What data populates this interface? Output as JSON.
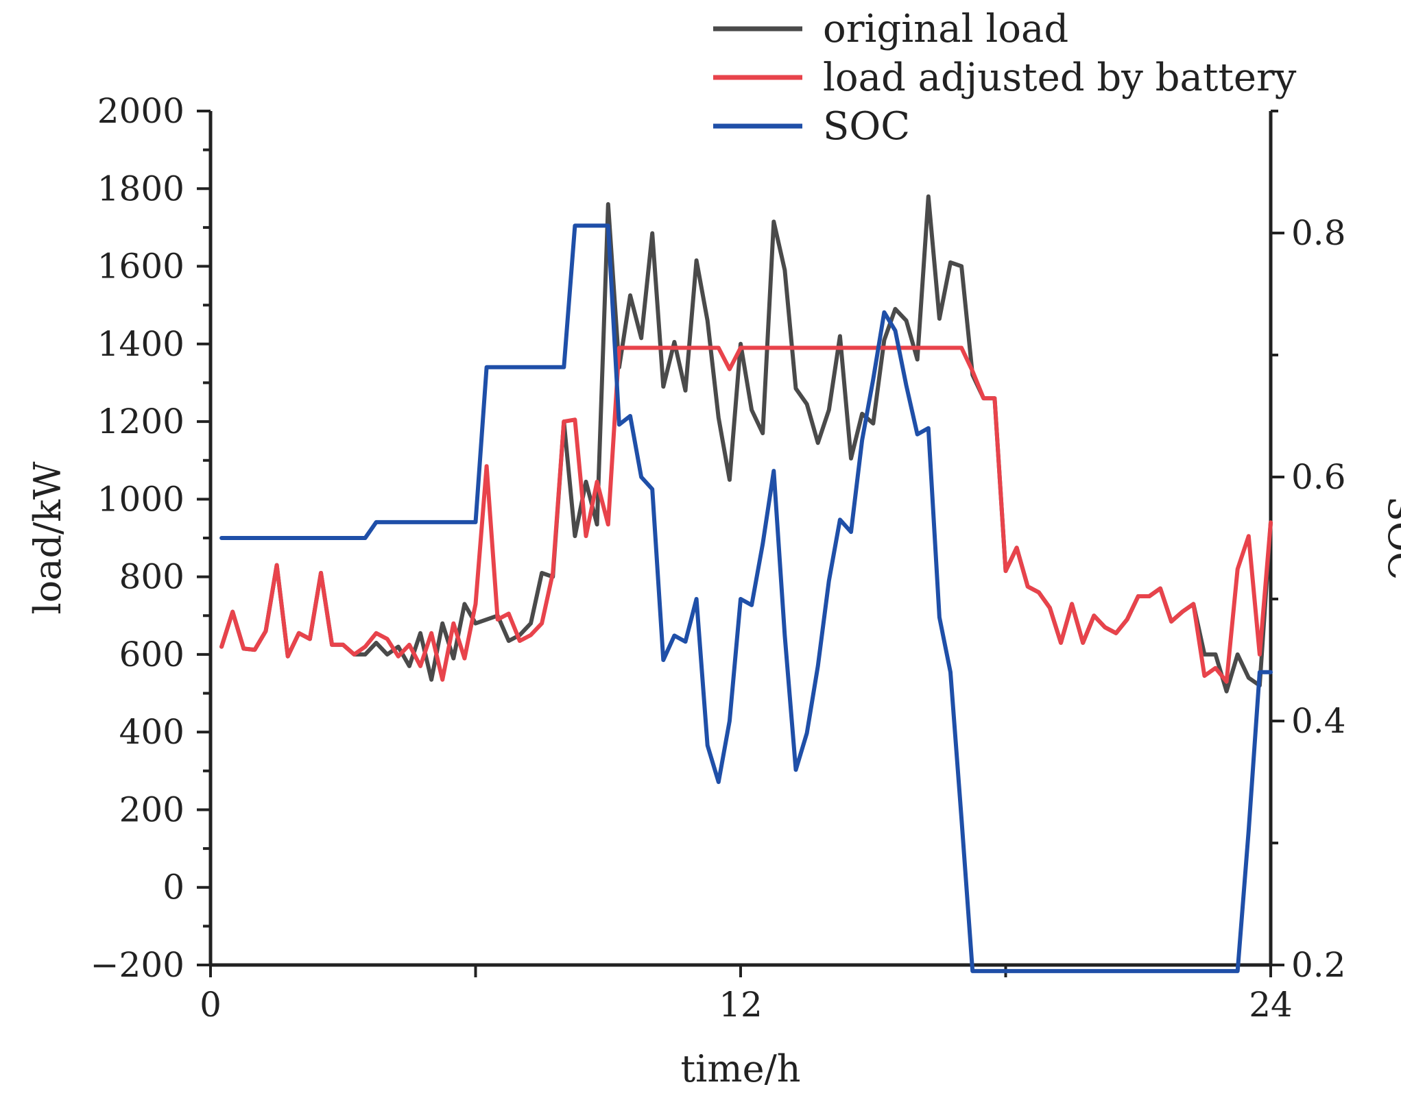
{
  "chart_data": {
    "type": "line",
    "xlabel": "time/h",
    "ylabel": "load/kW",
    "y2label": "SOC",
    "xlim": [
      0,
      24
    ],
    "ylim": [
      -200,
      2000
    ],
    "y2lim": [
      0.2,
      0.9
    ],
    "xticks": [
      "0",
      "12",
      "24"
    ],
    "yticks": [
      "-200",
      "0",
      "200",
      "400",
      "600",
      "800",
      "1000",
      "1200",
      "1400",
      "1600",
      "1800",
      "2000"
    ],
    "y2ticks": [
      "0.2",
      "0.4",
      "0.6",
      "0.8"
    ],
    "grid": false,
    "legend": "top-right",
    "series": [
      {
        "name": "original load",
        "axis": "left",
        "color": "#4a4a4a",
        "x": [
          0.25,
          0.5,
          0.75,
          1.0,
          1.25,
          1.5,
          1.75,
          2.0,
          2.25,
          2.5,
          2.75,
          3.0,
          3.25,
          3.5,
          3.75,
          4.0,
          4.25,
          4.5,
          4.75,
          5.0,
          5.25,
          5.5,
          5.75,
          6.0,
          6.25,
          6.5,
          6.75,
          7.0,
          7.25,
          7.5,
          7.75,
          8.0,
          8.25,
          8.5,
          8.75,
          9.0,
          9.25,
          9.5,
          9.75,
          10.0,
          10.25,
          10.5,
          10.75,
          11.0,
          11.25,
          11.5,
          11.75,
          12.0,
          12.25,
          12.5,
          12.75,
          13.0,
          13.25,
          13.5,
          13.75,
          14.0,
          14.25,
          14.5,
          14.75,
          15.0,
          15.25,
          15.5,
          15.75,
          16.0,
          16.25,
          16.5,
          16.75,
          17.0,
          17.25,
          17.5,
          17.75,
          18.0,
          18.25,
          18.5,
          18.75,
          19.0,
          19.25,
          19.5,
          19.75,
          20.0,
          20.25,
          20.5,
          20.75,
          21.0,
          21.25,
          21.5,
          21.75,
          22.0,
          22.25,
          22.5,
          22.75,
          23.0,
          23.25,
          23.5,
          23.75,
          24.0
        ],
        "values": [
          620,
          710,
          615,
          612,
          660,
          830,
          595,
          655,
          640,
          810,
          625,
          625,
          600,
          600,
          630,
          600,
          620,
          570,
          655,
          535,
          680,
          590,
          730,
          680,
          690,
          700,
          635,
          650,
          680,
          810,
          800,
          1200,
          905,
          1045,
          935,
          1760,
          1340,
          1525,
          1415,
          1685,
          1290,
          1405,
          1280,
          1615,
          1460,
          1210,
          1050,
          1400,
          1230,
          1170,
          1715,
          1590,
          1285,
          1245,
          1145,
          1230,
          1420,
          1105,
          1220,
          1195,
          1410,
          1490,
          1460,
          1360,
          1780,
          1465,
          1610,
          1600,
          1320,
          1260,
          1260,
          815,
          875,
          775,
          760,
          720,
          630,
          730,
          630,
          700,
          670,
          655,
          690,
          750,
          750,
          770,
          685,
          710,
          730,
          600,
          600,
          505,
          600,
          540,
          520,
          940
        ]
      },
      {
        "name": "load adjusted by battery",
        "axis": "left",
        "color": "#e8434b",
        "x": [
          0.25,
          0.5,
          0.75,
          1.0,
          1.25,
          1.5,
          1.75,
          2.0,
          2.25,
          2.5,
          2.75,
          3.0,
          3.25,
          3.5,
          3.75,
          4.0,
          4.25,
          4.5,
          4.75,
          5.0,
          5.25,
          5.5,
          5.75,
          6.0,
          6.25,
          6.5,
          6.75,
          7.0,
          7.25,
          7.5,
          7.75,
          8.0,
          8.25,
          8.5,
          8.75,
          9.0,
          9.25,
          9.5,
          9.75,
          10.0,
          10.25,
          10.5,
          10.75,
          11.0,
          11.25,
          11.5,
          11.75,
          12.0,
          12.25,
          12.5,
          12.75,
          13.0,
          13.25,
          13.5,
          13.75,
          14.0,
          14.25,
          14.5,
          14.75,
          15.0,
          15.25,
          15.5,
          15.75,
          16.0,
          16.25,
          16.5,
          16.75,
          17.0,
          17.25,
          17.5,
          17.75,
          18.0,
          18.25,
          18.5,
          18.75,
          19.0,
          19.25,
          19.5,
          19.75,
          20.0,
          20.25,
          20.5,
          20.75,
          21.0,
          21.25,
          21.5,
          21.75,
          22.0,
          22.25,
          22.5,
          22.75,
          23.0,
          23.25,
          23.5,
          23.75,
          24.0
        ],
        "values": [
          620,
          710,
          615,
          612,
          660,
          830,
          595,
          655,
          640,
          810,
          625,
          625,
          600,
          620,
          655,
          640,
          595,
          625,
          570,
          655,
          535,
          680,
          590,
          730,
          1085,
          690,
          705,
          635,
          650,
          680,
          810,
          1200,
          1205,
          905,
          1045,
          935,
          1390,
          1390,
          1390,
          1390,
          1390,
          1390,
          1390,
          1390,
          1390,
          1390,
          1335,
          1390,
          1390,
          1390,
          1390,
          1390,
          1390,
          1390,
          1390,
          1390,
          1390,
          1390,
          1390,
          1390,
          1390,
          1390,
          1390,
          1390,
          1390,
          1390,
          1390,
          1390,
          1330,
          1260,
          1260,
          815,
          875,
          775,
          760,
          720,
          630,
          730,
          630,
          700,
          670,
          655,
          690,
          750,
          750,
          770,
          685,
          710,
          730,
          545,
          565,
          530,
          820,
          905,
          600,
          940
        ]
      },
      {
        "name": "SOC",
        "axis": "right",
        "color": "#1f4fa8",
        "x": [
          0.25,
          3.5,
          3.75,
          4.25,
          4.75,
          5.25,
          5.75,
          6.0,
          6.25,
          6.5,
          6.75,
          7.0,
          7.25,
          7.5,
          7.75,
          8.0,
          8.25,
          8.5,
          8.75,
          9.0,
          9.25,
          9.5,
          9.75,
          10.0,
          10.25,
          10.5,
          10.75,
          11.0,
          11.25,
          11.5,
          11.75,
          12.0,
          12.25,
          12.5,
          12.75,
          13.0,
          13.25,
          13.5,
          13.75,
          14.0,
          14.25,
          14.5,
          14.75,
          15.0,
          15.25,
          15.5,
          15.75,
          16.0,
          16.25,
          16.5,
          16.75,
          17.0,
          17.25,
          20.0,
          21.5,
          22.5,
          23.25,
          23.5,
          23.75,
          24.0
        ],
        "values": [
          0.55,
          0.55,
          0.563,
          0.563,
          0.563,
          0.563,
          0.563,
          0.563,
          0.69,
          0.69,
          0.69,
          0.69,
          0.69,
          0.69,
          0.69,
          0.69,
          0.806,
          0.806,
          0.806,
          0.806,
          0.643,
          0.65,
          0.6,
          0.59,
          0.45,
          0.47,
          0.465,
          0.5,
          0.38,
          0.35,
          0.4,
          0.5,
          0.495,
          0.545,
          0.605,
          0.47,
          0.36,
          0.39,
          0.445,
          0.515,
          0.565,
          0.555,
          0.63,
          0.68,
          0.735,
          0.72,
          0.675,
          0.635,
          0.64,
          0.485,
          0.44,
          0.32,
          0.195,
          0.195,
          0.195,
          0.195,
          0.195,
          0.31,
          0.44,
          0.44
        ]
      }
    ]
  }
}
